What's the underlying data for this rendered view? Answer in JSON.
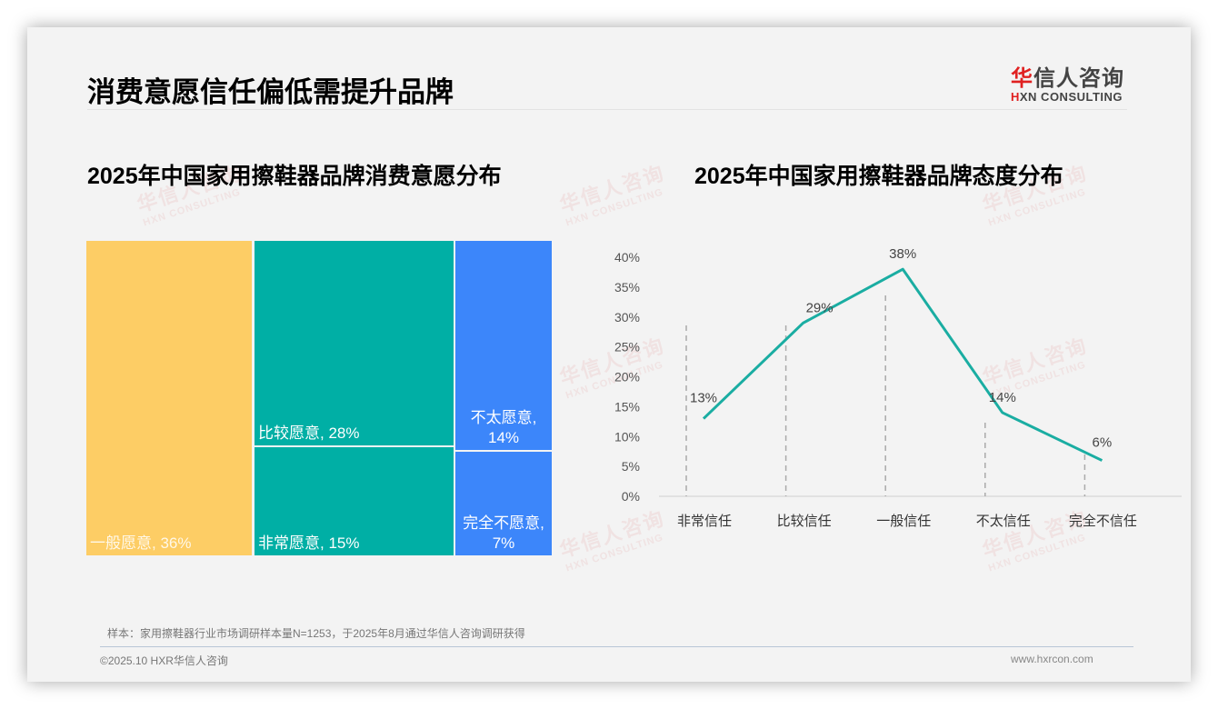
{
  "page": {
    "title": "消费意愿信任偏低需提升品牌",
    "logo": {
      "cn_highlight": "华",
      "cn_rest": "信人咨询",
      "en_highlight": "H",
      "en_rest": "XN CONSULTING"
    },
    "watermark": {
      "cn": "华信人咨询",
      "en": "HXN CONSULTING"
    },
    "footnote": "样本：家用擦鞋器行业市场调研样本量N=1253，于2025年8月通过华信人咨询调研获得",
    "footer_left": "©2025.10 HXR华信人咨询",
    "footer_right": "www.hxrcon.com"
  },
  "chart_data": [
    {
      "type": "treemap",
      "title": "2025年中国家用擦鞋器品牌消费意愿分布",
      "categories": [
        "一般愿意",
        "比较愿意",
        "非常愿意",
        "不太愿意",
        "完全不愿意"
      ],
      "values": [
        36,
        28,
        15,
        14,
        7
      ],
      "unit": "%",
      "labels": [
        "一般愿意, 36%",
        "比较愿意, 28%",
        "非常愿意, 15%",
        "不太愿意, 14%",
        "完全不愿意, 7%"
      ],
      "label_lines": [
        [
          "一般愿意, 36%"
        ],
        [
          "比较愿意, 28%"
        ],
        [
          "非常愿意, 15%"
        ],
        [
          "不太愿意,",
          "14%"
        ],
        [
          "完全不愿意,",
          "7%"
        ]
      ],
      "colors": [
        "#FDCD65",
        "#00AFA5",
        "#00AFA5",
        "#3C86FA",
        "#3C86FA"
      ]
    },
    {
      "type": "line",
      "title": "2025年中国家用擦鞋器品牌态度分布",
      "categories": [
        "非常信任",
        "比较信任",
        "一般信任",
        "不太信任",
        "完全不信任"
      ],
      "values": [
        13,
        29,
        38,
        14,
        6
      ],
      "data_labels": [
        "13%",
        "29%",
        "38%",
        "14%",
        "6%"
      ],
      "yticks": [
        "0%",
        "5%",
        "10%",
        "15%",
        "20%",
        "25%",
        "30%",
        "35%",
        "40%"
      ],
      "ylim": [
        0,
        40
      ],
      "xlabel": "",
      "ylabel": "",
      "grid": false,
      "legend": "none",
      "line_color": "#1AADA2"
    }
  ]
}
